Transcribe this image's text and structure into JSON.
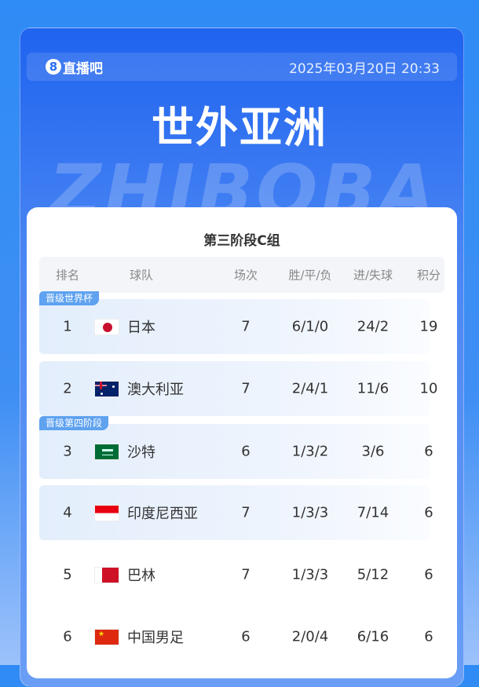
{
  "header": {
    "brand": "直播吧",
    "brand_badge": "8",
    "datetime": "2025年03月20日 20:33",
    "title": "世外亚洲",
    "watermark": "ZHIBOBA"
  },
  "group": "第三阶段C组",
  "columns": [
    "排名",
    "球队",
    "场次",
    "胜/平/负",
    "进/失球",
    "积分"
  ],
  "rows": [
    {
      "rank": "1",
      "team": "日本",
      "flag": "japan",
      "played": "7",
      "wdl": "6/1/0",
      "goals": "24/2",
      "points": "19",
      "tag": "晋级世界杯"
    },
    {
      "rank": "2",
      "team": "澳大利亚",
      "flag": "australia",
      "played": "7",
      "wdl": "2/4/1",
      "goals": "11/6",
      "points": "10"
    },
    {
      "rank": "3",
      "team": "沙特",
      "flag": "saudi-arabia",
      "played": "6",
      "wdl": "1/3/2",
      "goals": "3/6",
      "points": "6",
      "tag": "晋级第四阶段"
    },
    {
      "rank": "4",
      "team": "印度尼西亚",
      "flag": "indonesia",
      "played": "7",
      "wdl": "1/3/3",
      "goals": "7/14",
      "points": "6"
    },
    {
      "rank": "5",
      "team": "巴林",
      "flag": "bahrain",
      "played": "7",
      "wdl": "1/3/3",
      "goals": "5/12",
      "points": "6"
    },
    {
      "rank": "6",
      "team": "中国男足",
      "flag": "china",
      "played": "6",
      "wdl": "2/0/4",
      "goals": "6/16",
      "points": "6"
    }
  ]
}
